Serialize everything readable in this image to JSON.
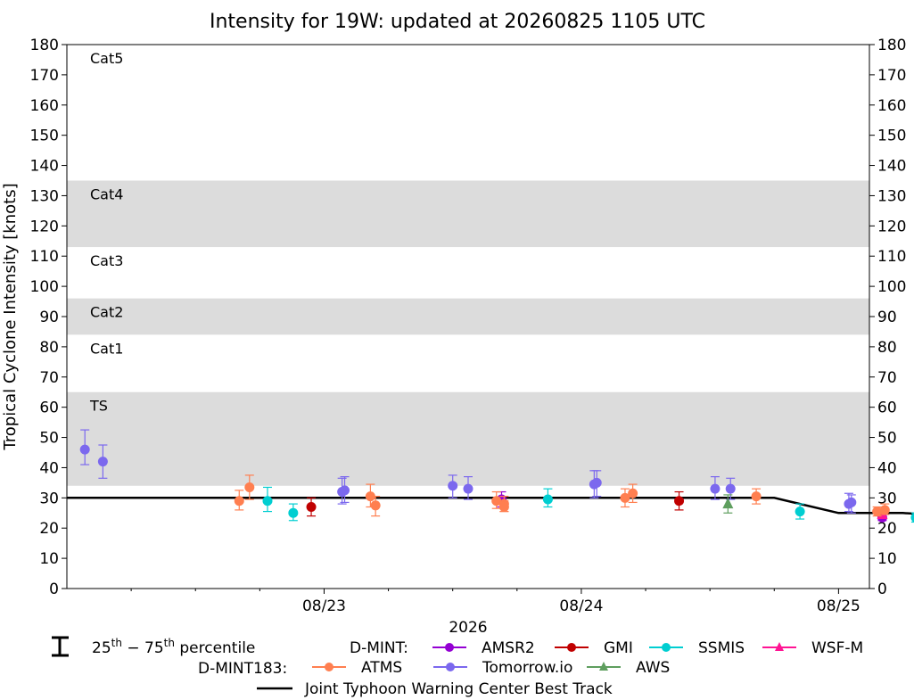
{
  "chart_data": {
    "type": "scatter",
    "title": "Intensity for 19W: updated at 20260825 1105 UTC",
    "ylabel": "Tropical Cyclone Intensity [knots]",
    "xlabel": "2026",
    "ylim": [
      0,
      180
    ],
    "yticks": [
      0,
      10,
      20,
      30,
      40,
      50,
      60,
      70,
      80,
      90,
      100,
      110,
      120,
      130,
      140,
      150,
      160,
      170,
      180
    ],
    "x_day_range": [
      22.0,
      25.12
    ],
    "x_ticks": [
      {
        "day": 23,
        "label": "08/23"
      },
      {
        "day": 24,
        "label": "08/24"
      },
      {
        "day": 25,
        "label": "08/25"
      }
    ],
    "grid": false,
    "categories": [
      {
        "label": "TS",
        "range": [
          34,
          65
        ],
        "shaded": true
      },
      {
        "label": "Cat1",
        "range": [
          65,
          84
        ],
        "shaded": false
      },
      {
        "label": "Cat2",
        "range": [
          84,
          96
        ],
        "shaded": true
      },
      {
        "label": "Cat3",
        "range": [
          96,
          113
        ],
        "shaded": false
      },
      {
        "label": "Cat4",
        "range": [
          113,
          135
        ],
        "shaded": true
      },
      {
        "label": "Cat5",
        "range": [
          135,
          180
        ],
        "shaded": false
      }
    ],
    "best_track": {
      "name": "Joint Typhoon Warning Center Best Track",
      "color": "#000000",
      "points": [
        [
          22.0,
          30
        ],
        [
          24.75,
          30
        ],
        [
          25.0,
          25
        ],
        [
          25.25,
          25
        ],
        [
          25.45,
          24
        ]
      ]
    },
    "series": [
      {
        "name": "AMSR2",
        "group": "D-MINT",
        "color": "#9400d3",
        "marker": "circle",
        "points": [
          [
            23.69,
            29.5,
            27,
            32
          ],
          [
            25.17,
            23.5,
            22.5,
            24.5
          ]
        ]
      },
      {
        "name": "GMI",
        "group": "D-MINT",
        "color": "#c00000",
        "marker": "circle",
        "points": [
          [
            22.95,
            27,
            24,
            30
          ],
          [
            24.38,
            29,
            26,
            32
          ]
        ]
      },
      {
        "name": "SSMIS",
        "group": "D-MINT",
        "color": "#00ced1",
        "marker": "circle",
        "points": [
          [
            22.78,
            29,
            25.5,
            33.5
          ],
          [
            22.88,
            25,
            22.5,
            28
          ],
          [
            23.87,
            29.5,
            27,
            33
          ],
          [
            24.85,
            25.5,
            23,
            28
          ],
          [
            25.3,
            23.5,
            22,
            25
          ],
          [
            25.4,
            23,
            22,
            24.5
          ]
        ]
      },
      {
        "name": "WSF-M",
        "group": "D-MINT",
        "color": "#ff1493",
        "marker": "triangle",
        "points": [
          [
            25.17,
            24.5,
            23.5,
            25.5
          ]
        ]
      },
      {
        "name": "ATMS",
        "group": "D-MINT183",
        "color": "#ff7f50",
        "marker": "circle",
        "points": [
          [
            22.67,
            29,
            26,
            32.5
          ],
          [
            22.71,
            33.5,
            29.5,
            37.5
          ],
          [
            23.18,
            30.5,
            27,
            34.5
          ],
          [
            23.2,
            27.5,
            24,
            30.5
          ],
          [
            23.67,
            29,
            26.5,
            32
          ],
          [
            23.7,
            28,
            25.5,
            30.5
          ],
          [
            23.7,
            27,
            25.5,
            29
          ],
          [
            24.17,
            30,
            27,
            33
          ],
          [
            24.2,
            31.5,
            28.5,
            34.5
          ],
          [
            24.68,
            30.5,
            28,
            33
          ],
          [
            25.15,
            25.5,
            24,
            27
          ],
          [
            25.18,
            26,
            24.5,
            28
          ]
        ]
      },
      {
        "name": "Tomorrow.io",
        "group": "D-MINT183",
        "color": "#7b68ee",
        "marker": "circle",
        "points": [
          [
            22.07,
            46,
            41,
            52.5
          ],
          [
            22.14,
            42,
            36.5,
            47.5
          ],
          [
            23.07,
            32,
            28,
            36.5
          ],
          [
            23.08,
            32.5,
            28.5,
            37
          ],
          [
            23.5,
            34,
            30,
            37.5
          ],
          [
            23.56,
            33,
            29.5,
            37
          ],
          [
            24.06,
            35,
            30.5,
            39
          ],
          [
            24.05,
            34.5,
            30,
            39
          ],
          [
            24.52,
            33,
            29.5,
            37
          ],
          [
            24.58,
            33,
            29.5,
            36.5
          ],
          [
            25.04,
            28,
            25.5,
            31.5
          ],
          [
            25.05,
            28.5,
            25,
            31
          ]
        ]
      },
      {
        "name": "AWS",
        "group": "D-MINT183",
        "color": "#5e9e5e",
        "marker": "triangle",
        "points": [
          [
            24.57,
            28,
            25,
            31
          ]
        ]
      }
    ]
  },
  "legend": {
    "percentile_prefix": "25",
    "percentile_sup1": "th",
    "percentile_mid": " − 75",
    "percentile_sup2": "th",
    "percentile_suffix": " percentile",
    "group1": "D-MINT:",
    "group2": "D-MINT183:",
    "best_track": "Joint Typhoon Warning Center Best Track"
  }
}
